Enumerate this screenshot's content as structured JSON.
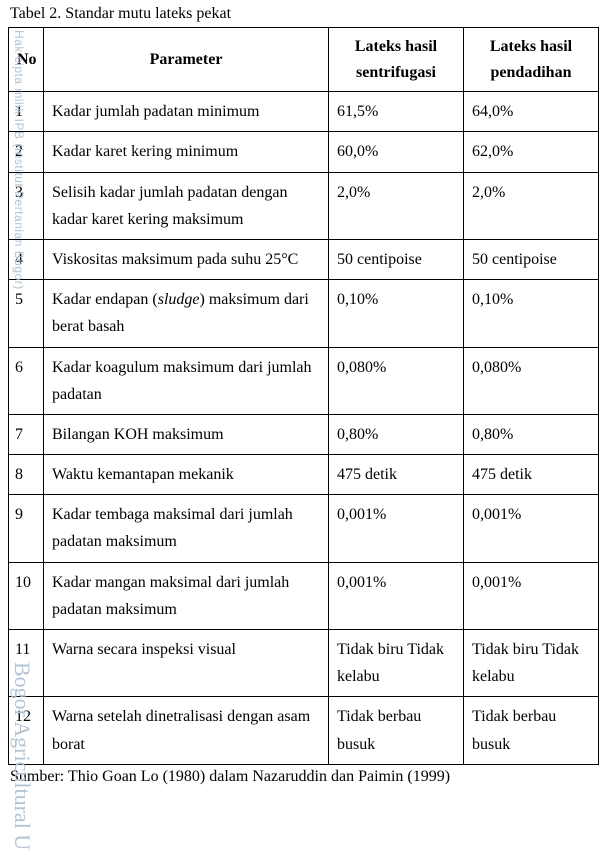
{
  "caption": "Tabel 2. Standar mutu lateks pekat",
  "headers": {
    "no": "No",
    "param": "Parameter",
    "sent_line1": "Lateks hasil",
    "sent_line2": "sentrifugasi",
    "pend_line1": "Lateks hasil",
    "pend_line2": "pendadihan"
  },
  "rows": [
    {
      "no": "1",
      "param": "Kadar jumlah padatan minimum",
      "sent": "61,5%",
      "pend": "64,0%"
    },
    {
      "no": "2",
      "param": "Kadar karet kering minimum",
      "sent": "60,0%",
      "pend": "62,0%"
    },
    {
      "no": "3",
      "param": "Selisih kadar jumlah padatan dengan kadar karet kering maksimum",
      "sent": "2,0%",
      "pend": "2,0%"
    },
    {
      "no": "4",
      "param": "Viskositas maksimum pada suhu 25°C",
      "sent": "50 centipoise",
      "pend": "50 centipoise"
    },
    {
      "no": "5",
      "param_pre": "Kadar endapan (",
      "param_it": "sludge",
      "param_post": ") maksimum dari berat basah",
      "sent": "0,10%",
      "pend": "0,10%"
    },
    {
      "no": "6",
      "param": "Kadar koagulum maksimum dari jumlah padatan",
      "sent": "0,080%",
      "pend": "0,080%"
    },
    {
      "no": "7",
      "param": "Bilangan KOH maksimum",
      "sent": "0,80%",
      "pend": "0,80%"
    },
    {
      "no": "8",
      "param": "Waktu kemantapan mekanik",
      "sent": "475 detik",
      "pend": "475 detik"
    },
    {
      "no": "9",
      "param": "Kadar tembaga maksimal dari jumlah padatan maksimum",
      "sent": "0,001%",
      "pend": "0,001%"
    },
    {
      "no": "10",
      "param": "Kadar mangan maksimal dari jumlah padatan maksimum",
      "sent": "0,001%",
      "pend": "0,001%"
    },
    {
      "no": "11",
      "param": "Warna secara inspeksi visual",
      "sent": "Tidak biru Tidak kelabu",
      "pend": "Tidak biru Tidak kelabu"
    },
    {
      "no": "12",
      "param": "Warna setelah dinetralisasi dengan asam borat",
      "sent": "Tidak berbau  busuk",
      "pend": "Tidak berbau  busuk"
    }
  ],
  "source": "Sumber: Thio Goan Lo (1980) dalam Nazaruddin dan Paimin (1999)",
  "watermark_top": "Hak cipta milik IPB (Institut Pertanian Bogor)",
  "watermark_bottom": "Bogor Agricultural U"
}
